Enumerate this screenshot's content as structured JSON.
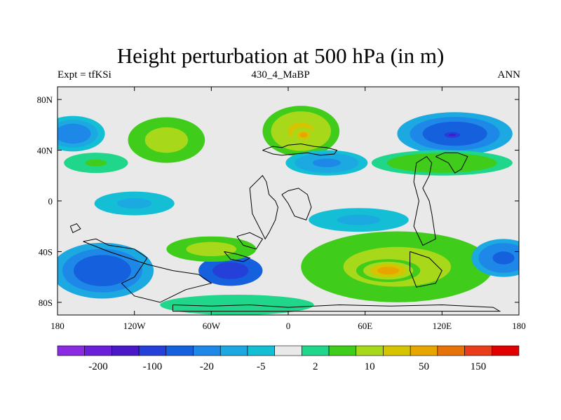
{
  "chart_data": {
    "type": "heatmap",
    "title": "Height perturbation at 500 hPa (in m)",
    "subtitle_left": "Expt = tfKSi",
    "subtitle_center": "430_4_MaBP",
    "subtitle_right": "ANN",
    "xlabel": "",
    "ylabel": "",
    "xlim": [
      -180,
      180
    ],
    "ylim": [
      -90,
      90
    ],
    "x_ticks": [
      {
        "value": -180,
        "label": "180"
      },
      {
        "value": -120,
        "label": "120W"
      },
      {
        "value": -60,
        "label": "60W"
      },
      {
        "value": 0,
        "label": "0"
      },
      {
        "value": 60,
        "label": "60E"
      },
      {
        "value": 120,
        "label": "120E"
      },
      {
        "value": 180,
        "label": "180"
      }
    ],
    "y_ticks": [
      {
        "value": 80,
        "label": "80N"
      },
      {
        "value": 40,
        "label": "40N"
      },
      {
        "value": 0,
        "label": "0"
      },
      {
        "value": -40,
        "label": "40S"
      },
      {
        "value": -80,
        "label": "80S"
      }
    ],
    "colorbar": {
      "colors": [
        "#8a2be2",
        "#6a20d8",
        "#4b18c8",
        "#2440d8",
        "#1560dd",
        "#1e88e8",
        "#1ca8e0",
        "#14bfd6",
        "#e9e9e9",
        "#20d68a",
        "#40cc1a",
        "#a8d81a",
        "#d6c400",
        "#e8a500",
        "#e8720a",
        "#e83c1a",
        "#e00000"
      ],
      "levels": [
        "",
        "-200",
        "",
        "-100",
        "",
        "-20",
        "",
        "-5",
        "",
        "2",
        "",
        "10",
        "",
        "50",
        "",
        "150",
        ""
      ]
    },
    "field_blobs": [
      {
        "lon": -95,
        "lat": 48,
        "rlon": 30,
        "rlat": 18,
        "value": 45
      },
      {
        "lon": 10,
        "lat": 55,
        "rlon": 30,
        "rlat": 20,
        "value": 55
      },
      {
        "lon": 12,
        "lat": 52,
        "rlon": 9,
        "rlat": 6,
        "value": 90
      },
      {
        "lon": 130,
        "lat": 53,
        "rlon": 45,
        "rlat": 17,
        "value": -30
      },
      {
        "lon": 128,
        "lat": 52,
        "rlon": 8,
        "rlat": 3,
        "value": -120
      },
      {
        "lon": -168,
        "lat": 53,
        "rlon": 25,
        "rlat": 14,
        "value": -15
      },
      {
        "lon": 30,
        "lat": 30,
        "rlon": 32,
        "rlat": 10,
        "value": -12
      },
      {
        "lon": -150,
        "lat": 30,
        "rlon": 25,
        "rlat": 8,
        "value": 12
      },
      {
        "lon": 120,
        "lat": 30,
        "rlon": 55,
        "rlat": 10,
        "value": 20
      },
      {
        "lon": -120,
        "lat": -2,
        "rlon": 40,
        "rlat": 12,
        "value": -5
      },
      {
        "lon": 55,
        "lat": -15,
        "rlon": 50,
        "rlat": 12,
        "value": -5
      },
      {
        "lon": -145,
        "lat": -55,
        "rlon": 40,
        "rlat": 22,
        "value": -30
      },
      {
        "lon": -45,
        "lat": -55,
        "rlon": 25,
        "rlat": 12,
        "value": -90
      },
      {
        "lon": -60,
        "lat": -38,
        "rlon": 35,
        "rlat": 10,
        "value": 35
      },
      {
        "lon": 85,
        "lat": -52,
        "rlon": 75,
        "rlat": 28,
        "value": 45
      },
      {
        "lon": 78,
        "lat": -55,
        "rlon": 25,
        "rlat": 9,
        "value": 80
      },
      {
        "lon": 168,
        "lat": -45,
        "rlon": 25,
        "rlat": 15,
        "value": -20
      },
      {
        "lon": -40,
        "lat": -82,
        "rlon": 60,
        "rlat": 8,
        "value": 8
      }
    ],
    "coastlines": [
      [
        [
          -20,
          40
        ],
        [
          -12,
          43
        ],
        [
          -5,
          42
        ],
        [
          0,
          44
        ],
        [
          10,
          45
        ],
        [
          20,
          43
        ],
        [
          30,
          42
        ],
        [
          38,
          40
        ],
        [
          36,
          37
        ],
        [
          25,
          36
        ],
        [
          15,
          38
        ],
        [
          5,
          37
        ],
        [
          -5,
          36
        ],
        [
          -12,
          37
        ],
        [
          -20,
          40
        ]
      ],
      [
        [
          -30,
          10
        ],
        [
          -25,
          15
        ],
        [
          -20,
          20
        ],
        [
          -17,
          15
        ],
        [
          -15,
          5
        ],
        [
          -10,
          0
        ],
        [
          -8,
          -5
        ],
        [
          -10,
          -15
        ],
        [
          -15,
          -25
        ],
        [
          -18,
          -30
        ],
        [
          -22,
          -22
        ],
        [
          -28,
          -10
        ],
        [
          -30,
          10
        ]
      ],
      [
        [
          -5,
          5
        ],
        [
          0,
          8
        ],
        [
          8,
          10
        ],
        [
          15,
          5
        ],
        [
          18,
          -5
        ],
        [
          14,
          -15
        ],
        [
          5,
          -12
        ],
        [
          0,
          -2
        ],
        [
          -5,
          5
        ]
      ],
      [
        [
          100,
          30
        ],
        [
          108,
          35
        ],
        [
          112,
          30
        ],
        [
          110,
          20
        ],
        [
          105,
          10
        ],
        [
          110,
          0
        ],
        [
          112,
          -10
        ],
        [
          115,
          -30
        ],
        [
          105,
          -35
        ],
        [
          98,
          -20
        ],
        [
          102,
          0
        ],
        [
          98,
          15
        ],
        [
          100,
          30
        ]
      ],
      [
        [
          115,
          35
        ],
        [
          125,
          30
        ],
        [
          130,
          22
        ],
        [
          135,
          25
        ],
        [
          140,
          35
        ],
        [
          132,
          38
        ],
        [
          122,
          38
        ],
        [
          115,
          35
        ]
      ],
      [
        [
          -170,
          -20
        ],
        [
          -165,
          -18
        ],
        [
          -162,
          -22
        ],
        [
          -168,
          -25
        ],
        [
          -170,
          -20
        ]
      ],
      [
        [
          -160,
          -32
        ],
        [
          -150,
          -30
        ],
        [
          -140,
          -35
        ],
        [
          -120,
          -38
        ],
        [
          -110,
          -45
        ],
        [
          -120,
          -60
        ],
        [
          -130,
          -65
        ],
        [
          -120,
          -75
        ],
        [
          -100,
          -80
        ],
        [
          -80,
          -70
        ],
        [
          -60,
          -65
        ],
        [
          -70,
          -58
        ],
        [
          -90,
          -55
        ],
        [
          -110,
          -50
        ],
        [
          -140,
          -40
        ],
        [
          -160,
          -32
        ]
      ],
      [
        [
          -40,
          -28
        ],
        [
          -30,
          -25
        ],
        [
          -20,
          -30
        ],
        [
          -25,
          -38
        ],
        [
          -35,
          -35
        ],
        [
          -40,
          -28
        ]
      ],
      [
        [
          -50,
          -40
        ],
        [
          -40,
          -42
        ],
        [
          -30,
          -45
        ],
        [
          -35,
          -48
        ],
        [
          -45,
          -46
        ],
        [
          -50,
          -40
        ]
      ],
      [
        [
          95,
          -40
        ],
        [
          110,
          -45
        ],
        [
          120,
          -55
        ],
        [
          115,
          -65
        ],
        [
          100,
          -68
        ],
        [
          95,
          -55
        ],
        [
          95,
          -40
        ]
      ],
      [
        [
          -90,
          -82
        ],
        [
          -60,
          -83
        ],
        [
          -30,
          -82
        ],
        [
          0,
          -84
        ],
        [
          40,
          -82
        ],
        [
          80,
          -83
        ],
        [
          120,
          -82
        ],
        [
          160,
          -84
        ],
        [
          165,
          -87
        ],
        [
          -90,
          -87
        ],
        [
          -90,
          -82
        ]
      ]
    ]
  }
}
